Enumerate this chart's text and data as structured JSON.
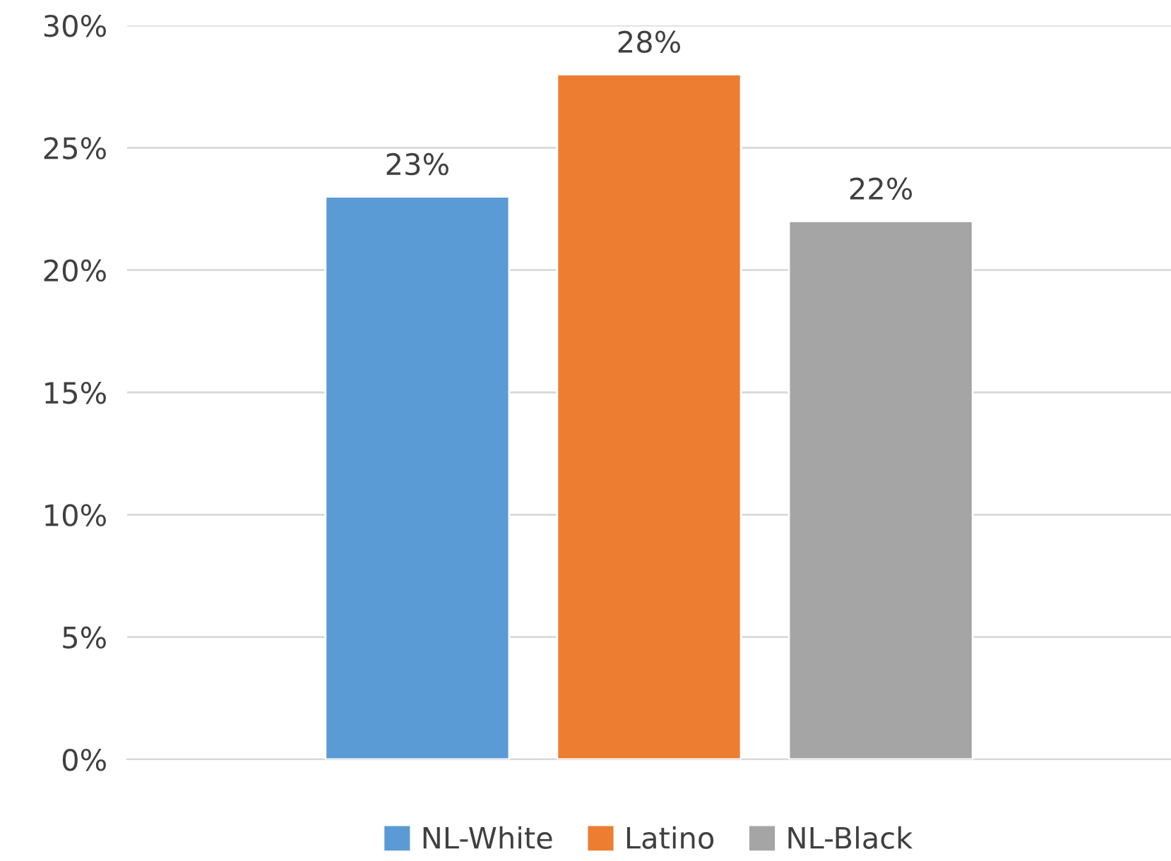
{
  "chart_data": {
    "type": "bar",
    "categories": [
      null
    ],
    "series": [
      {
        "name": "NL-White",
        "color": "#5b9bd5",
        "values": [
          23
        ],
        "value_labels": [
          "23%"
        ]
      },
      {
        "name": "Latino",
        "color": "#ed7d31",
        "values": [
          28
        ],
        "value_labels": [
          "28%"
        ]
      },
      {
        "name": "NL-Black",
        "color": "#a5a5a5",
        "values": [
          22
        ],
        "value_labels": [
          "22%"
        ]
      }
    ],
    "ylim": [
      0,
      30
    ],
    "yticks": [
      {
        "value": 0,
        "label": "0%"
      },
      {
        "value": 5,
        "label": "5%"
      },
      {
        "value": 10,
        "label": "10%"
      },
      {
        "value": 15,
        "label": "15%"
      },
      {
        "value": 20,
        "label": "20%"
      },
      {
        "value": 25,
        "label": "25%"
      },
      {
        "value": 30,
        "label": "30%"
      }
    ],
    "grid": "y",
    "legend": "bottom"
  }
}
